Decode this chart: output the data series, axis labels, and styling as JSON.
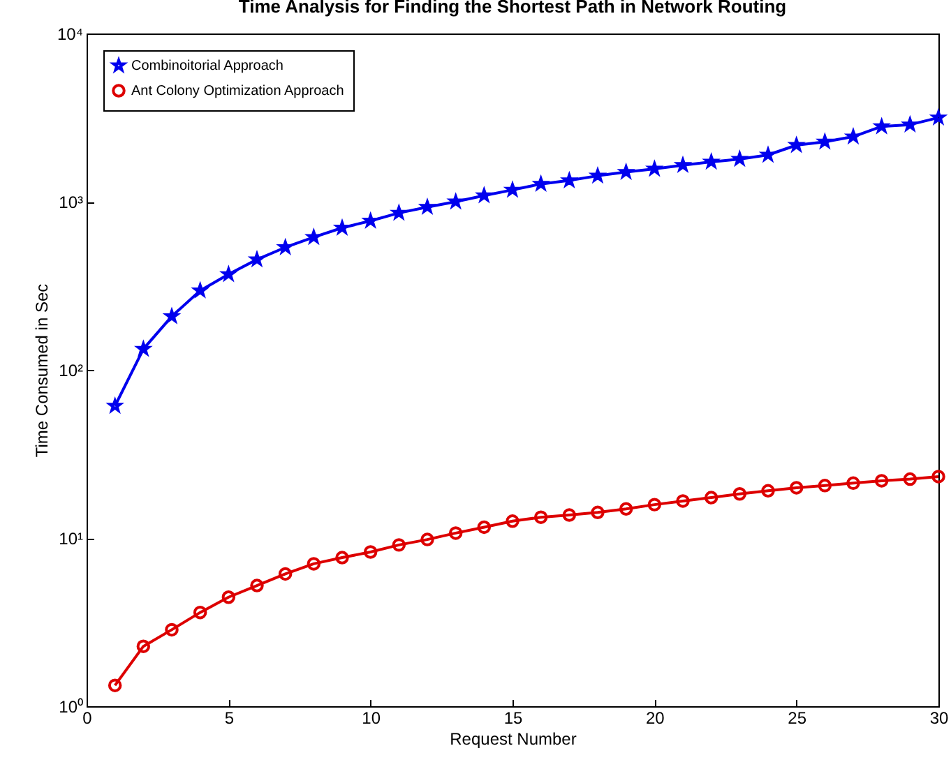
{
  "chart_data": {
    "type": "line",
    "title": "Time Analysis for Finding the Shortest Path in Network Routing",
    "xlabel": "Request Number",
    "ylabel": "Time Consumed in Sec",
    "x": [
      1,
      2,
      3,
      4,
      5,
      6,
      7,
      8,
      9,
      10,
      11,
      12,
      13,
      14,
      15,
      16,
      17,
      18,
      19,
      20,
      21,
      22,
      23,
      24,
      25,
      26,
      27,
      28,
      29,
      30
    ],
    "series": [
      {
        "name": "Combinoitorial Approach",
        "color": "#0000ee",
        "marker": "star",
        "values": [
          61,
          133,
          208,
          296,
          370,
          453,
          535,
          615,
          699,
          769,
          857,
          929,
          1000,
          1088,
          1175,
          1274,
          1337,
          1426,
          1500,
          1567,
          1649,
          1725,
          1792,
          1897,
          2168,
          2270,
          2436,
          2800,
          2870,
          3160
        ]
      },
      {
        "name": "Ant Colony Optimization Approach",
        "color": "#dd0000",
        "marker": "circle",
        "values": [
          1.33,
          2.27,
          2.85,
          3.61,
          4.45,
          5.22,
          6.12,
          7.03,
          7.65,
          8.26,
          9.1,
          9.8,
          10.7,
          11.6,
          12.6,
          13.3,
          13.7,
          14.2,
          14.9,
          15.8,
          16.6,
          17.4,
          18.3,
          19.1,
          19.9,
          20.5,
          21.2,
          21.9,
          22.4,
          23.2
        ]
      }
    ],
    "log": "y",
    "xlim": [
      0,
      30
    ],
    "xticks": [
      0,
      5,
      10,
      15,
      20,
      25,
      30
    ],
    "ylim": [
      1,
      10000
    ],
    "yticks": [
      {
        "value": 1,
        "label": "10⁰"
      },
      {
        "value": 10,
        "label": "10¹"
      },
      {
        "value": 100,
        "label": "10²"
      },
      {
        "value": 1000,
        "label": "10³"
      },
      {
        "value": 10000,
        "label": "10⁴"
      }
    ],
    "legend": "top left",
    "grid": false,
    "line_style": "solid"
  }
}
